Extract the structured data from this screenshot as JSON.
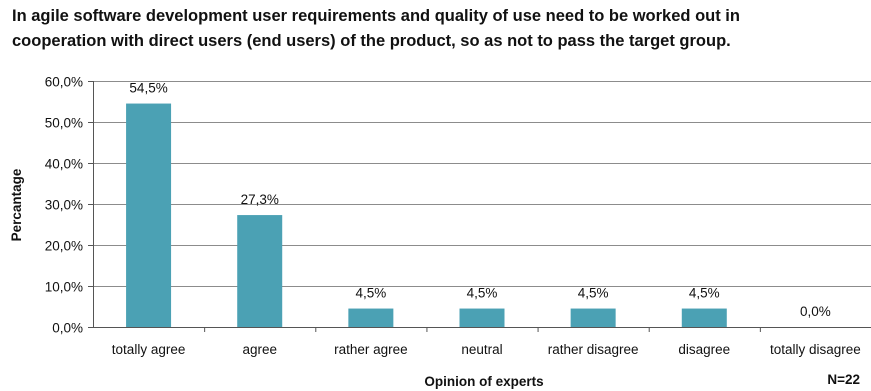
{
  "chart_data": {
    "type": "bar",
    "title_lines": [
      "In agile software development user requirements and quality of use need to be worked out in",
      "cooperation with direct users (end users) of the product, so as not to pass the target group."
    ],
    "categories": [
      "totally agree",
      "agree",
      "rather agree",
      "neutral",
      "rather disagree",
      "disagree",
      "totally disagree"
    ],
    "values": [
      54.5,
      27.3,
      4.5,
      4.5,
      4.5,
      4.5,
      0.0
    ],
    "data_labels": [
      "54,5%",
      "27,3%",
      "4,5%",
      "4,5%",
      "4,5%",
      "4,5%",
      "0,0%"
    ],
    "ylim": [
      0,
      60
    ],
    "yticks": [
      0,
      10,
      20,
      30,
      40,
      50,
      60
    ],
    "ytick_labels": [
      "0,0%",
      "10,0%",
      "20,0%",
      "30,0%",
      "40,0%",
      "50,0%",
      "60,0%"
    ],
    "ylabel": "Percantage",
    "xlabel": "Opinion of experts",
    "note": "N=22",
    "grid": true,
    "bar_color": "#4BA1B4",
    "grid_color": "#8c8c8c"
  }
}
